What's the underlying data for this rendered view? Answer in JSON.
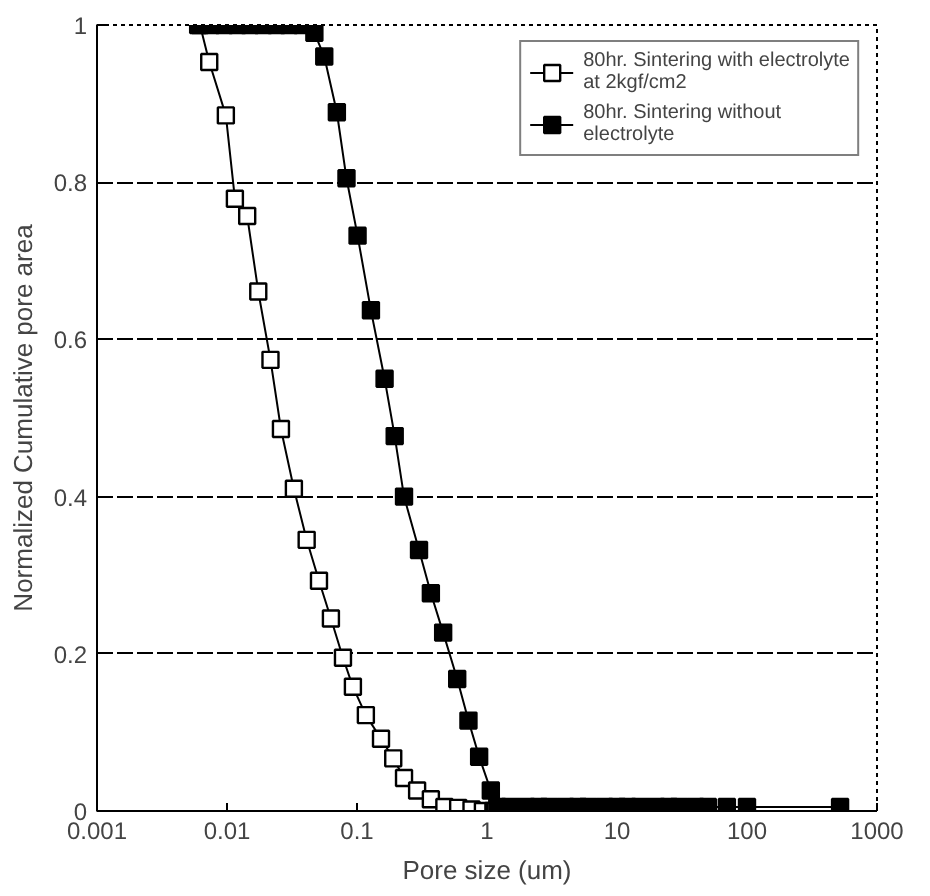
{
  "chart_data": {
    "type": "line",
    "xlabel": "Pore size (um)",
    "ylabel": "Normalized Cumulative pore area",
    "log": "x",
    "xlim": [
      0.001,
      1000
    ],
    "ylim": [
      0,
      1
    ],
    "xticks": [
      0.001,
      0.01,
      0.1,
      1,
      10,
      100,
      1000
    ],
    "yticks": [
      0,
      0.2,
      0.4,
      0.6,
      0.8,
      1
    ],
    "grid": "y",
    "legend": "top right",
    "marker": "square",
    "line_style": "solid",
    "series": [
      {
        "name": "80hr. Sintering with electrolyte at 2kgf/cm2",
        "color": "#ffffff",
        "x": [
          0.0062,
          0.0073,
          0.0098,
          0.0115,
          0.0143,
          0.0174,
          0.0216,
          0.026,
          0.0327,
          0.041,
          0.051,
          0.063,
          0.078,
          0.093,
          0.117,
          0.153,
          0.19,
          0.23,
          0.29,
          0.37,
          0.47,
          0.6,
          0.76,
          0.93,
          1.12
        ],
        "values": [
          1,
          0.953,
          0.885,
          0.779,
          0.757,
          0.661,
          0.574,
          0.486,
          0.41,
          0.345,
          0.293,
          0.245,
          0.195,
          0.158,
          0.122,
          0.092,
          0.067,
          0.042,
          0.026,
          0.015,
          0.005,
          0.004,
          0.002,
          0,
          0
        ]
      },
      {
        "name": "80hr. Sintering without electrolyte",
        "color": "#000000",
        "x": [
          0.006,
          0.0075,
          0.0095,
          0.012,
          0.015,
          0.019,
          0.024,
          0.03,
          0.038,
          0.047,
          0.056,
          0.07,
          0.083,
          0.101,
          0.128,
          0.163,
          0.195,
          0.23,
          0.3,
          0.37,
          0.46,
          0.59,
          0.72,
          0.87,
          1.07,
          1.2,
          1.5,
          2,
          2.5,
          3,
          4,
          5,
          6,
          8,
          10,
          12,
          15,
          20,
          25,
          30,
          40,
          50,
          70,
          100,
          520
        ],
        "values": [
          1,
          1,
          1,
          1,
          1,
          1,
          1,
          1,
          1,
          0.99,
          0.96,
          0.889,
          0.805,
          0.732,
          0.637,
          0.55,
          0.477,
          0.4,
          0.332,
          0.277,
          0.227,
          0.168,
          0.115,
          0.069,
          0.026,
          0.005,
          0.005,
          0.005,
          0.005,
          0.005,
          0.005,
          0.005,
          0.005,
          0.005,
          0.005,
          0.005,
          0.005,
          0.005,
          0.005,
          0.005,
          0.005,
          0.005,
          0.005,
          0.005,
          0.005
        ]
      }
    ]
  }
}
